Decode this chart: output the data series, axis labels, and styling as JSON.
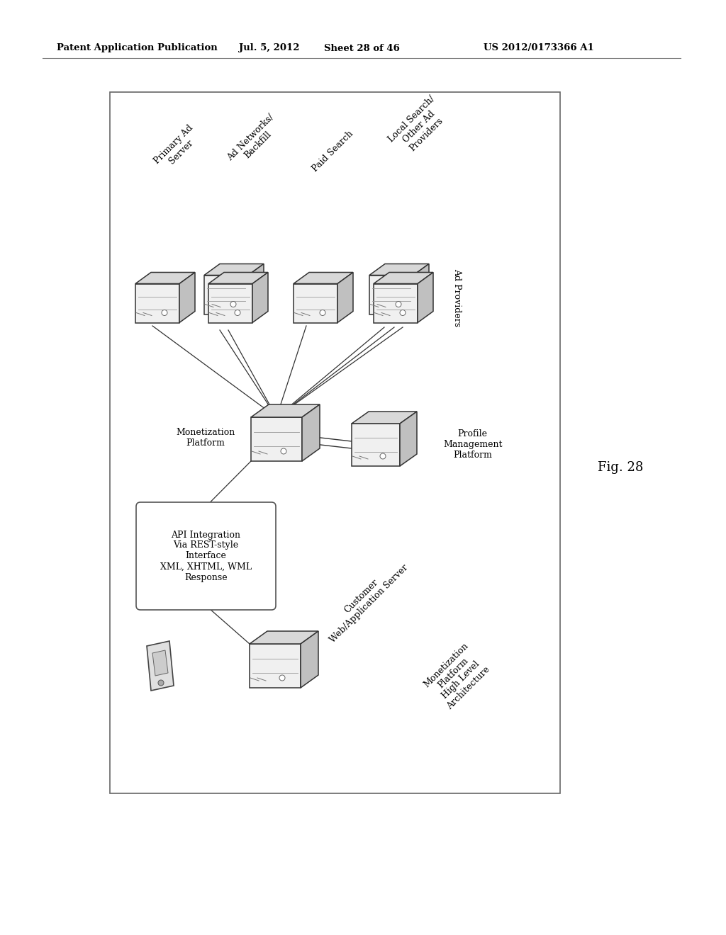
{
  "bg_color": "#ffffff",
  "header_text": "Patent Application Publication",
  "header_date": "Jul. 5, 2012",
  "header_sheet": "Sheet 28 of 46",
  "header_patent": "US 2012/0173366 A1",
  "fig_label": "Fig. 28",
  "bottom_label": "Monetization\nPlatform\nHigh Level\nArchitecture",
  "server_labels": [
    "Primary Ad\nServer",
    "Ad Networks/\nBackfill",
    "Paid Search",
    "Local Search/\nOther Ad\nProviders"
  ],
  "ad_providers_label": "Ad Providers",
  "monetization_label": "Monetization\nPlatform",
  "profile_label": "Profile\nManagement\nPlatform",
  "api_box_label": "API Integration\nVia REST-style\nInterface\nXML, XHTML, WML\nResponse",
  "customer_server_label": "Customer\nWeb/Application Server",
  "line_color": "#333333",
  "ec": "#333333",
  "fc_front": "#f0f0f0",
  "fc_top": "#d8d8d8",
  "fc_side": "#c0c0c0"
}
